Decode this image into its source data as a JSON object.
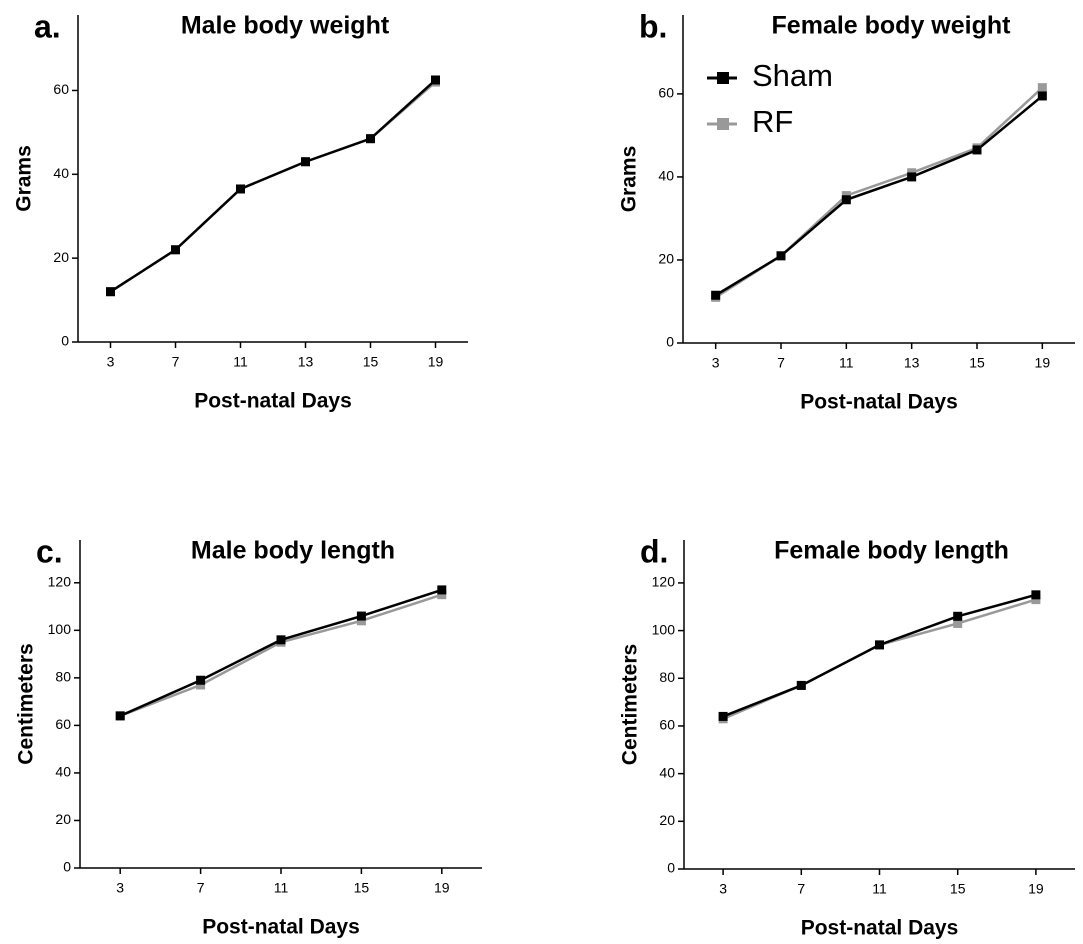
{
  "chart_data": [
    {
      "type": "line",
      "panel_label": "a.",
      "title": "Male body weight",
      "xlabel": "Post-natal Days",
      "ylabel": "Grams",
      "categories": [
        "3",
        "7",
        "11",
        "13",
        "15",
        "19"
      ],
      "series": [
        {
          "color": "#000000",
          "values": [
            12,
            22,
            36.5,
            43,
            48.5,
            62.5
          ]
        },
        {
          "color": "#999999",
          "values": [
            12,
            22,
            36.5,
            43,
            48.5,
            62
          ]
        }
      ],
      "ylim": [
        0,
        78
      ],
      "yticks": [
        0,
        20,
        40,
        60
      ]
    },
    {
      "type": "line",
      "panel_label": "b.",
      "title": "Female body weight",
      "xlabel": "Post-natal Days",
      "ylabel": "Grams",
      "categories": [
        "3",
        "7",
        "11",
        "13",
        "15",
        "19"
      ],
      "series": [
        {
          "name": "Sham",
          "color": "#000000",
          "values": [
            11.5,
            21,
            34.5,
            40,
            46.5,
            59.5
          ]
        },
        {
          "name": "RF",
          "color": "#999999",
          "values": [
            11,
            21,
            35.5,
            41,
            47,
            61.5
          ]
        }
      ],
      "ylim": [
        0,
        79
      ],
      "yticks": [
        0,
        20,
        40,
        60
      ],
      "legend": "upper left"
    },
    {
      "type": "line",
      "panel_label": "c.",
      "title": "Male body length",
      "xlabel": "Post-natal Days",
      "ylabel": "Centimeters",
      "categories": [
        "3",
        "7",
        "11",
        "15",
        "19"
      ],
      "series": [
        {
          "color": "#000000",
          "values": [
            64,
            79,
            96,
            106,
            117
          ]
        },
        {
          "color": "#999999",
          "values": [
            64,
            77,
            95,
            104,
            115
          ]
        }
      ],
      "ylim": [
        0,
        138
      ],
      "yticks": [
        0,
        20,
        40,
        60,
        80,
        100,
        120
      ]
    },
    {
      "type": "line",
      "panel_label": "d.",
      "title": "Female body length",
      "xlabel": "Post-natal Days",
      "ylabel": "Centimeters",
      "categories": [
        "3",
        "7",
        "11",
        "15",
        "19"
      ],
      "series": [
        {
          "color": "#000000",
          "values": [
            64,
            77,
            94,
            106,
            115
          ]
        },
        {
          "color": "#999999",
          "values": [
            63,
            77,
            94,
            103,
            113
          ]
        }
      ],
      "ylim": [
        0,
        138
      ],
      "yticks": [
        0,
        20,
        40,
        60,
        80,
        100,
        120
      ]
    }
  ]
}
